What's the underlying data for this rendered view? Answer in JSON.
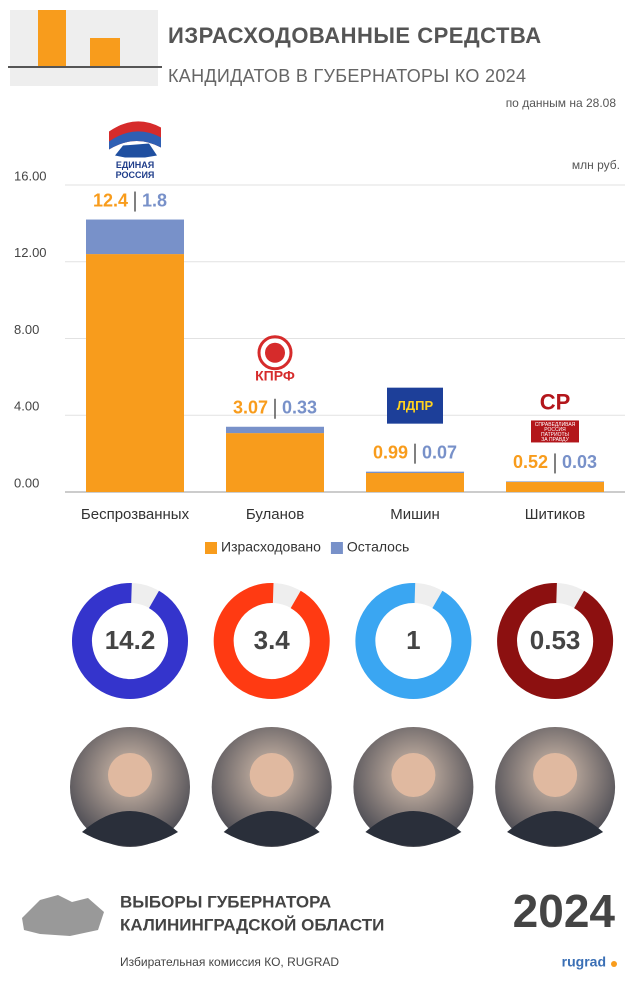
{
  "header": {
    "title": "ИЗРАСХОДОВАННЫЕ СРЕДСТВА",
    "subtitle": "КАНДИДАТОВ В ГУБЕРНАТОРЫ КО 2024",
    "note": "по данным на 28.08"
  },
  "logos": [
    [
      "ЕДИНАЯ",
      "РОССИЯ"
    ],
    [
      "КПРФ"
    ],
    [
      "ЛДПР"
    ],
    [
      "СР",
      "СПРАВЕДЛИВАЯ",
      "РОССИЯ",
      "ПАТРИОТЫ",
      "ЗА ПРАВДУ"
    ]
  ],
  "chart_data": [
    {
      "type": "bar",
      "stacked": true,
      "unit": "млн руб.",
      "categories": [
        "Беспрозванных",
        "Буланов",
        "Мишин",
        "Шитиков"
      ],
      "series": [
        {
          "name": "Израсходовано",
          "color": "#f89c1c",
          "values": [
            12.4,
            3.07,
            0.99,
            0.52
          ]
        },
        {
          "name": "Осталось",
          "color": "#7891c9",
          "values": [
            1.8,
            0.33,
            0.07,
            0.03
          ]
        }
      ],
      "ylim": [
        0,
        16
      ],
      "yticks": [
        {
          "value": 0,
          "label": "0.00"
        },
        {
          "value": 4,
          "label": "4.00"
        },
        {
          "value": 8,
          "label": "8.00"
        },
        {
          "value": 12,
          "label": "12.00"
        },
        {
          "value": 16,
          "label": "16.00"
        }
      ],
      "grid": true,
      "legend": "bottom"
    },
    {
      "type": "donut",
      "values": [
        14.2,
        3.4,
        1,
        0.53
      ],
      "colors": [
        "#3434cc",
        "#ff3a12",
        "#3aa6f2",
        "#8c1010"
      ]
    }
  ],
  "footer": {
    "title": [
      "ВЫБОРЫ ГУБЕРНАТОРА",
      "КАЛИНИНГРАДСКОЙ ОБЛАСТИ"
    ],
    "year": "2024",
    "source": "Избирательная комиссия КО, RUGRAD",
    "brand": "rugrad"
  }
}
